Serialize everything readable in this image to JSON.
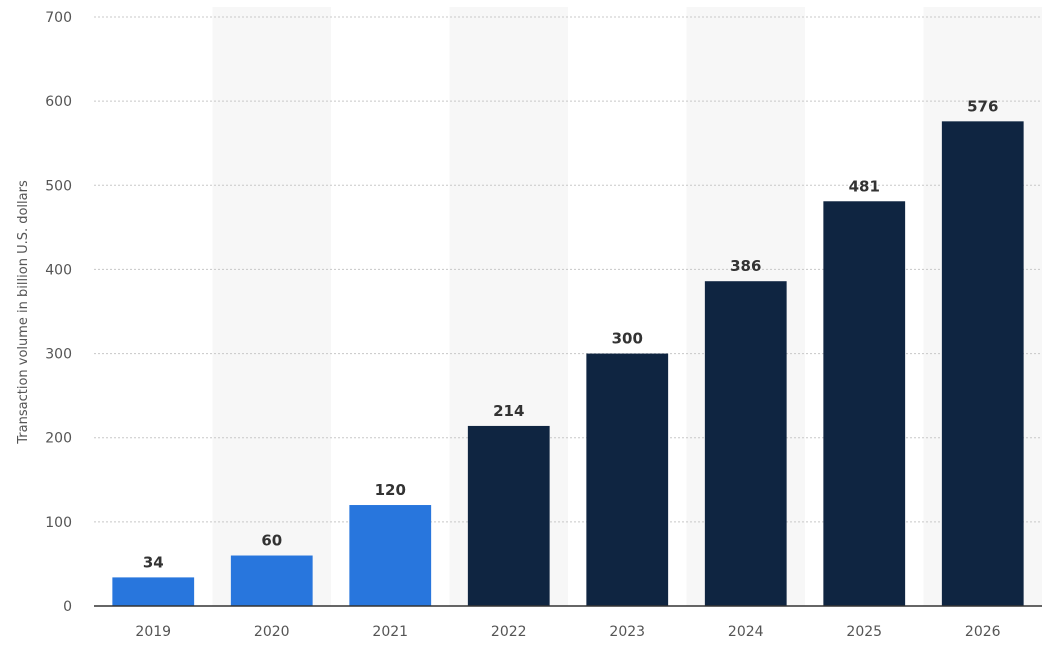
{
  "chart_data": {
    "type": "bar",
    "title": "",
    "xlabel": "",
    "ylabel": "Transaction volume in billion U.S. dollars",
    "categories": [
      "2019",
      "2020",
      "2021",
      "2022",
      "2023",
      "2024",
      "2025",
      "2026"
    ],
    "values": [
      34,
      60,
      120,
      214,
      300,
      386,
      481,
      576
    ],
    "value_labels": [
      "34",
      "60",
      "120",
      "214",
      "300",
      "386",
      "481",
      "576"
    ],
    "ylim": [
      0,
      700
    ],
    "yticks": [
      0,
      100,
      200,
      300,
      400,
      500,
      600,
      700
    ],
    "ytick_labels": [
      "0",
      "100",
      "200",
      "300",
      "400",
      "500",
      "600",
      "700"
    ],
    "grid": true,
    "legend": "none",
    "colors": {
      "actual": "#2876dd",
      "forecast": "#0f2541",
      "band": "#f7f7f7",
      "grid": "#c8c8c8",
      "axis": "#333333"
    },
    "bar_kind": [
      "actual",
      "actual",
      "actual",
      "forecast",
      "forecast",
      "forecast",
      "forecast",
      "forecast"
    ]
  }
}
